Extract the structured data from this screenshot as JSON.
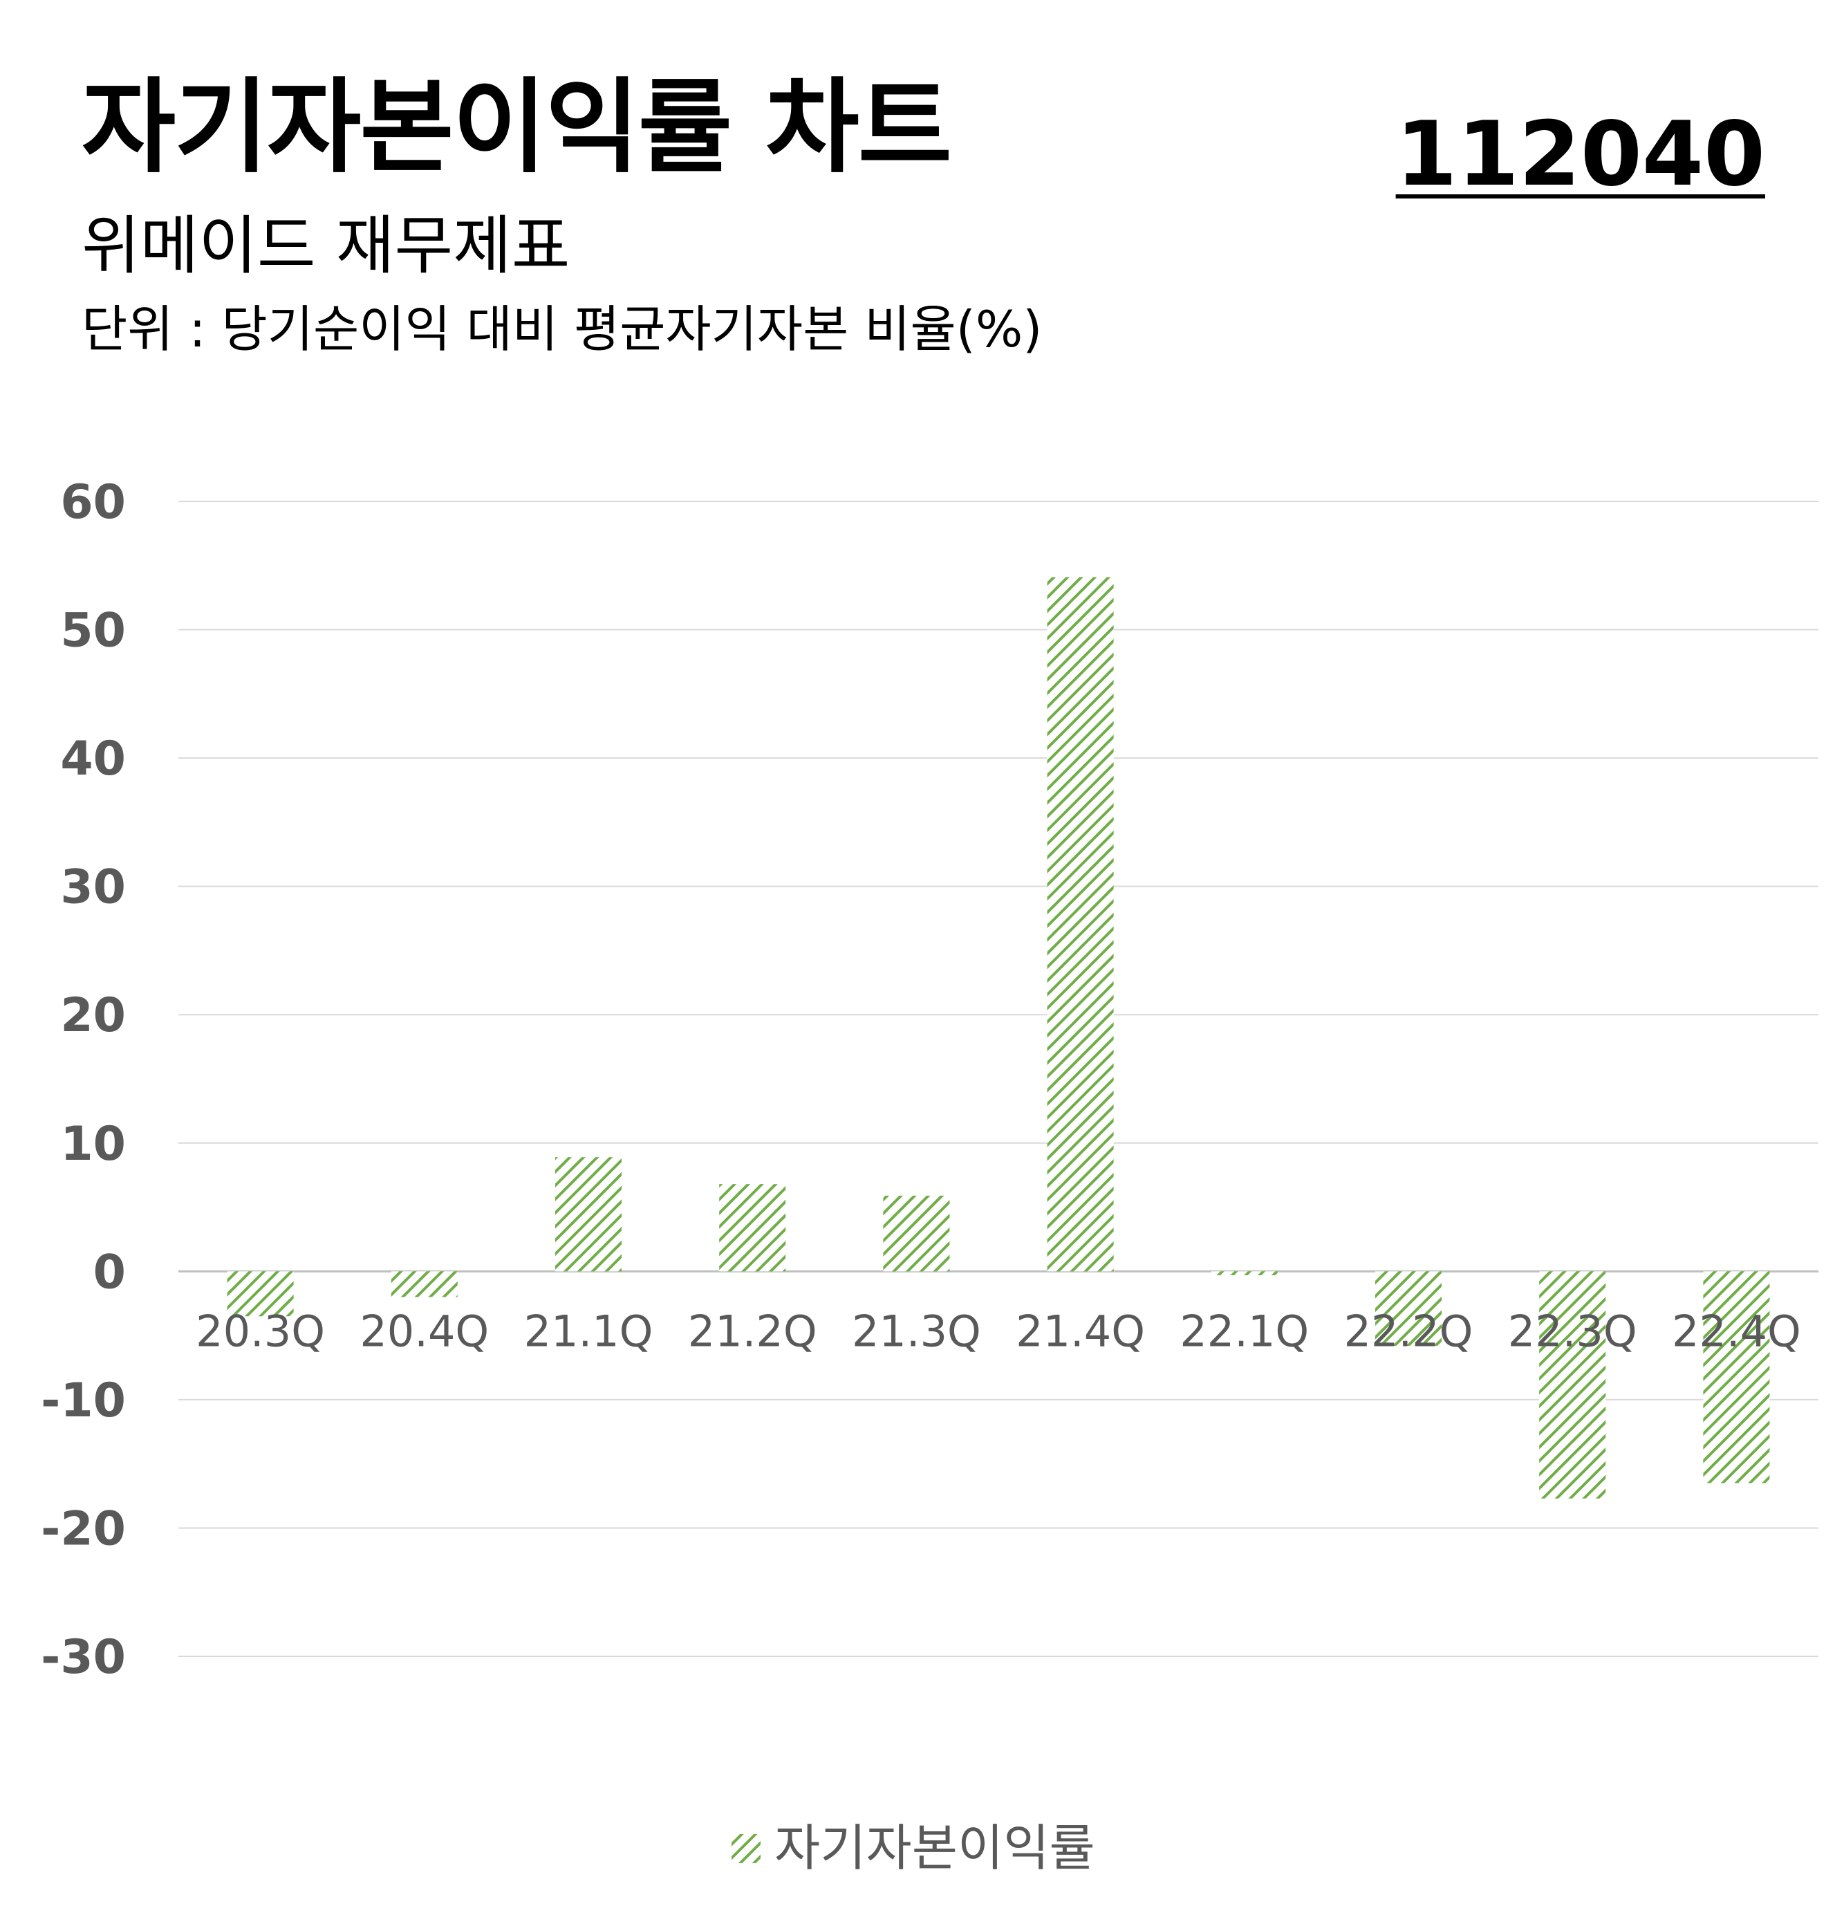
{
  "header": {
    "title": "자기자본이익률 차트",
    "code": "112040",
    "subtitle": "위메이드 재무제표",
    "unit": "단위 : 당기순이익 대비 평균자기자본 비율(%)"
  },
  "colors": {
    "bar": "#70ad47",
    "grid": "#d9d9d9",
    "tick": "#595959"
  },
  "chart_data": {
    "type": "bar",
    "categories": [
      "20.3Q",
      "20.4Q",
      "21.1Q",
      "21.2Q",
      "21.3Q",
      "21.4Q",
      "22.1Q",
      "22.2Q",
      "22.3Q",
      "22.4Q"
    ],
    "series": [
      {
        "name": "자기자본이익률",
        "values": [
          -3.5,
          -2.0,
          8.9,
          6.8,
          5.9,
          54.1,
          -0.3,
          -5.8,
          -17.7,
          -16.5
        ]
      }
    ],
    "ylim": [
      -30,
      60
    ],
    "yticks": [
      60,
      50,
      40,
      30,
      20,
      10,
      0,
      -10,
      -20,
      -30
    ],
    "grid": true,
    "bar_fill": "diagonal-hatch",
    "legend": "bottom-center"
  }
}
